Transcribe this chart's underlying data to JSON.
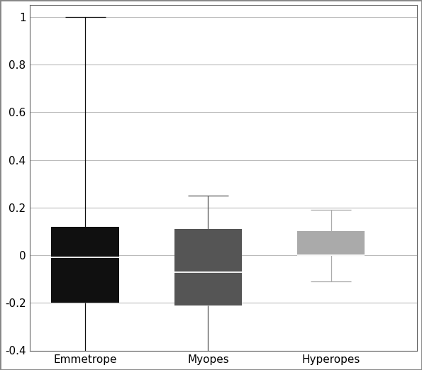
{
  "categories": [
    "Emmetrope",
    "Myopes",
    "Hyperopes"
  ],
  "boxes": [
    {
      "whisker_low": -0.42,
      "q1": -0.2,
      "median": -0.01,
      "q3": 0.12,
      "whisker_high": 1.0,
      "color": "#101010"
    },
    {
      "whisker_low": -0.42,
      "q1": -0.21,
      "median": -0.07,
      "q3": 0.11,
      "whisker_high": 0.25,
      "color": "#555555"
    },
    {
      "whisker_low": -0.11,
      "q1": 0.0,
      "median": 0.0,
      "q3": 0.1,
      "whisker_high": 0.19,
      "color": "#aaaaaa"
    }
  ],
  "ylim": [
    -0.4,
    1.05
  ],
  "yticks": [
    -0.4,
    -0.2,
    0.0,
    0.2,
    0.4,
    0.6,
    0.8,
    1.0
  ],
  "ytick_labels": [
    "-0.4",
    "-0.2",
    "0",
    "0.2",
    "0.4",
    "0.6",
    "0.8",
    "1"
  ],
  "background_color": "#ffffff",
  "box_width": 0.55,
  "linewidth": 1.0,
  "whisker_linewidth": 0.9,
  "grid_color": "#bbbbbb",
  "border_color": "#888888"
}
